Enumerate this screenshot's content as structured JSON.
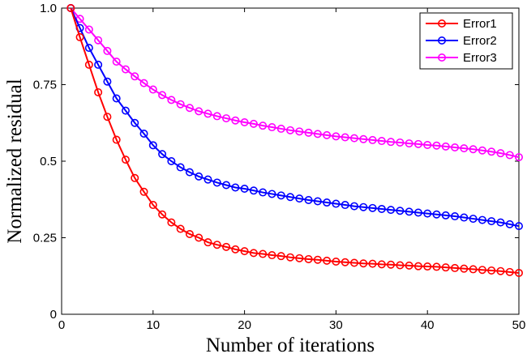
{
  "chart_data": {
    "type": "line",
    "xlabel": "Number of iterations",
    "ylabel": "Normalized residual",
    "xlim": [
      0,
      50
    ],
    "ylim": [
      0,
      1.0
    ],
    "xticks": [
      0,
      10,
      20,
      30,
      40,
      50
    ],
    "xtick_labels": [
      "0",
      "10",
      "20",
      "30",
      "40",
      "50"
    ],
    "yticks": [
      0,
      0.25,
      0.5,
      0.75,
      1.0
    ],
    "ytick_labels": [
      "0",
      "0.25",
      "0.5",
      "0.75",
      "1.0"
    ],
    "grid": false,
    "legend_position": "top-right",
    "marker": "open-circle",
    "x": [
      1,
      2,
      3,
      4,
      5,
      6,
      7,
      8,
      9,
      10,
      11,
      12,
      13,
      14,
      15,
      16,
      17,
      18,
      19,
      20,
      21,
      22,
      23,
      24,
      25,
      26,
      27,
      28,
      29,
      30,
      31,
      32,
      33,
      34,
      35,
      36,
      37,
      38,
      39,
      40,
      41,
      42,
      43,
      44,
      45,
      46,
      47,
      48,
      49,
      50
    ],
    "series": [
      {
        "name": "Error1",
        "color": "#ff0000",
        "values": [
          1.0,
          0.905,
          0.815,
          0.725,
          0.645,
          0.57,
          0.505,
          0.445,
          0.4,
          0.357,
          0.326,
          0.3,
          0.279,
          0.262,
          0.25,
          0.235,
          0.227,
          0.22,
          0.212,
          0.206,
          0.2,
          0.197,
          0.193,
          0.19,
          0.186,
          0.183,
          0.18,
          0.178,
          0.175,
          0.172,
          0.17,
          0.168,
          0.166,
          0.165,
          0.163,
          0.162,
          0.16,
          0.159,
          0.157,
          0.156,
          0.155,
          0.153,
          0.151,
          0.149,
          0.147,
          0.145,
          0.143,
          0.141,
          0.138,
          0.135
        ]
      },
      {
        "name": "Error2",
        "color": "#0000ff",
        "values": [
          1.0,
          0.935,
          0.87,
          0.815,
          0.76,
          0.705,
          0.665,
          0.625,
          0.59,
          0.552,
          0.523,
          0.5,
          0.48,
          0.464,
          0.45,
          0.44,
          0.43,
          0.422,
          0.414,
          0.41,
          0.404,
          0.398,
          0.393,
          0.388,
          0.383,
          0.378,
          0.373,
          0.369,
          0.365,
          0.361,
          0.357,
          0.353,
          0.35,
          0.347,
          0.344,
          0.341,
          0.338,
          0.335,
          0.332,
          0.329,
          0.326,
          0.323,
          0.32,
          0.316,
          0.312,
          0.308,
          0.304,
          0.3,
          0.294,
          0.288
        ]
      },
      {
        "name": "Error3",
        "color": "#ff00ff",
        "values": [
          1.0,
          0.965,
          0.93,
          0.895,
          0.86,
          0.825,
          0.8,
          0.777,
          0.755,
          0.734,
          0.716,
          0.7,
          0.686,
          0.674,
          0.663,
          0.655,
          0.647,
          0.64,
          0.633,
          0.627,
          0.622,
          0.616,
          0.611,
          0.606,
          0.601,
          0.597,
          0.593,
          0.589,
          0.585,
          0.581,
          0.578,
          0.575,
          0.572,
          0.569,
          0.566,
          0.563,
          0.561,
          0.558,
          0.556,
          0.553,
          0.551,
          0.548,
          0.545,
          0.542,
          0.539,
          0.535,
          0.531,
          0.526,
          0.52,
          0.513
        ]
      }
    ]
  }
}
